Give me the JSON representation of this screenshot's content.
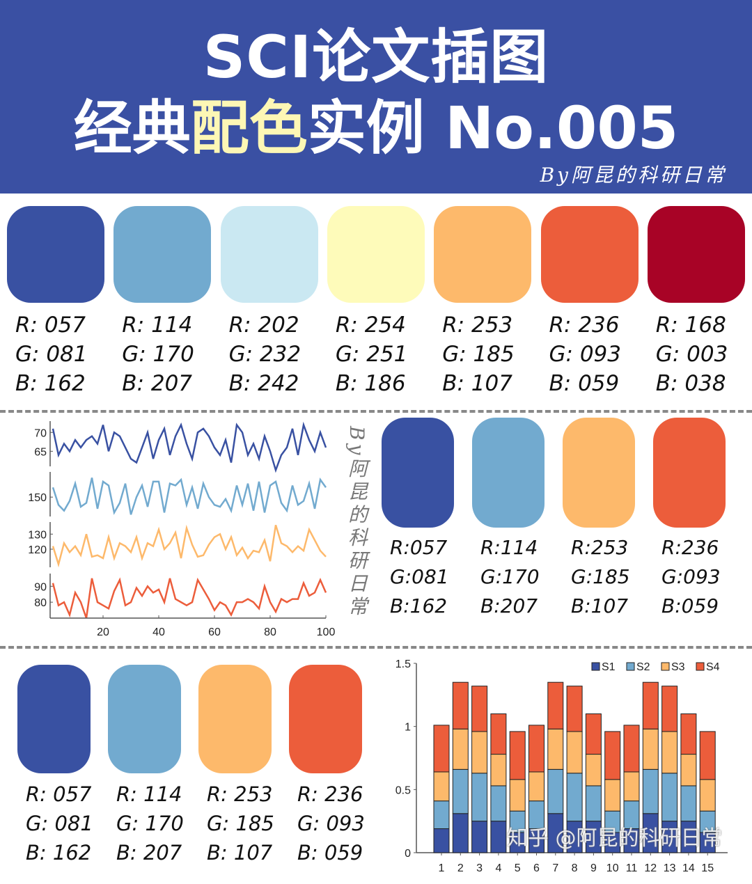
{
  "header": {
    "title_line1": "SCI论文插图",
    "title_line2_a": "经典",
    "title_line2_highlight": "配色",
    "title_line2_b": "实例 No.005",
    "byline": "By阿昆的科研日常",
    "bg_color": "#3A50A3",
    "highlight_color": "#FDF7B5"
  },
  "palette7": [
    {
      "color": "#3951A2",
      "r": "R: 057",
      "g": "G: 081",
      "b": "B: 162"
    },
    {
      "color": "#72AACF",
      "r": "R: 114",
      "g": "G: 170",
      "b": "B: 207"
    },
    {
      "color": "#CAE8F2",
      "r": "R: 202",
      "g": "G: 232",
      "b": "B: 242"
    },
    {
      "color": "#FEFBBA",
      "r": "R: 254",
      "g": "G: 251",
      "b": "B: 186"
    },
    {
      "color": "#FDB96B",
      "r": "R: 253",
      "g": "G: 185",
      "b": "B: 107"
    },
    {
      "color": "#EC5D3B",
      "r": "R: 236",
      "g": "G: 093",
      "b": "B: 059"
    },
    {
      "color": "#A80326",
      "r": "R: 168",
      "g": "G: 003",
      "b": "B: 038"
    }
  ],
  "palette4a": [
    {
      "color": "#3951A2",
      "r": "R:057",
      "g": "G:081",
      "b": "B:162"
    },
    {
      "color": "#72AACF",
      "r": "R:114",
      "g": "G:170",
      "b": "B:207"
    },
    {
      "color": "#FDB96B",
      "r": "R:253",
      "g": "G:185",
      "b": "B:107"
    },
    {
      "color": "#EC5D3B",
      "r": "R:236",
      "g": "G:093",
      "b": "B:059"
    }
  ],
  "palette4b": [
    {
      "color": "#3951A2",
      "r": "R: 057",
      "g": "G: 081",
      "b": "B: 162"
    },
    {
      "color": "#72AACF",
      "r": "R: 114",
      "g": "G: 170",
      "b": "B: 207"
    },
    {
      "color": "#FDB96B",
      "r": "R: 253",
      "g": "G: 185",
      "b": "B: 107"
    },
    {
      "color": "#EC5D3B",
      "r": "R: 236",
      "g": "G: 093",
      "b": "B: 059"
    }
  ],
  "side_watermark": "By阿昆的科研日常",
  "bottom_watermark": "知乎 @阿昆的科研日常",
  "chart_data": [
    {
      "type": "line",
      "xlim": [
        1,
        100
      ],
      "xticks": [
        "20",
        "40",
        "60",
        "80",
        "100"
      ],
      "x": [
        2,
        4,
        6,
        8,
        10,
        12,
        14,
        16,
        18,
        20,
        22,
        24,
        26,
        28,
        30,
        32,
        34,
        36,
        38,
        40,
        42,
        44,
        46,
        48,
        50,
        52,
        54,
        56,
        58,
        60,
        62,
        64,
        66,
        68,
        70,
        72,
        74,
        76,
        78,
        80,
        82,
        84,
        86,
        88,
        90,
        92,
        94,
        96,
        98,
        100
      ],
      "panels": [
        {
          "color": "#3951A2",
          "ylim": [
            61,
            73
          ],
          "yticks": [
            "65",
            "70"
          ],
          "values": [
            71,
            64,
            67,
            65,
            68,
            66,
            68,
            69,
            67,
            72,
            65,
            70,
            69,
            66,
            63,
            62,
            66,
            70,
            63,
            68,
            71,
            64,
            69,
            72,
            67,
            63,
            70,
            71,
            69,
            66,
            64,
            68,
            62,
            72,
            70,
            64,
            67,
            63,
            69,
            65,
            60,
            64,
            66,
            71,
            64,
            72,
            68,
            65,
            70,
            66
          ]
        },
        {
          "color": "#72AACF",
          "ylim": [
            140,
            163
          ],
          "yticks": [
            "150"
          ],
          "values": [
            155,
            146,
            143,
            148,
            157,
            145,
            147,
            160,
            144,
            158,
            156,
            142,
            147,
            157,
            141,
            150,
            156,
            145,
            158,
            158,
            142,
            157,
            156,
            159,
            146,
            155,
            144,
            157,
            150,
            146,
            145,
            149,
            143,
            156,
            146,
            157,
            143,
            158,
            142,
            156,
            158,
            147,
            143,
            156,
            146,
            148,
            157,
            144,
            159,
            155
          ]
        },
        {
          "color": "#FDB96B",
          "ylim": [
            108,
            138
          ],
          "yticks": [
            "120",
            "130"
          ],
          "values": [
            122,
            110,
            124,
            118,
            122,
            116,
            130,
            115,
            116,
            114,
            128,
            114,
            124,
            122,
            118,
            128,
            114,
            124,
            122,
            133,
            120,
            124,
            131,
            114,
            134,
            123,
            115,
            116,
            123,
            128,
            130,
            120,
            128,
            116,
            121,
            114,
            119,
            118,
            126,
            112,
            136,
            124,
            122,
            118,
            122,
            119,
            133,
            126,
            119,
            115
          ]
        },
        {
          "color": "#EC5D3B",
          "ylim": [
            70,
            98
          ],
          "yticks": [
            "80",
            "90"
          ],
          "values": [
            92,
            78,
            80,
            72,
            86,
            80,
            70,
            95,
            80,
            78,
            76,
            87,
            94,
            78,
            80,
            89,
            84,
            90,
            86,
            88,
            80,
            95,
            82,
            80,
            78,
            80,
            94,
            88,
            82,
            75,
            80,
            78,
            72,
            80,
            80,
            82,
            80,
            76,
            90,
            80,
            74,
            82,
            80,
            82,
            82,
            92,
            84,
            86,
            94,
            86
          ]
        }
      ]
    },
    {
      "type": "bar",
      "stacked": true,
      "ylim": [
        0,
        1.5
      ],
      "yticks": [
        "0",
        "0.5",
        "1",
        "1.5"
      ],
      "legend": "top-right",
      "categories": [
        "1",
        "2",
        "3",
        "4",
        "5",
        "6",
        "7",
        "8",
        "9",
        "10",
        "11",
        "12",
        "13",
        "14",
        "15"
      ],
      "series": [
        {
          "name": "S1",
          "color": "#3951A2",
          "values": [
            0.19,
            0.31,
            0.25,
            0.25,
            0.16,
            0.19,
            0.31,
            0.25,
            0.25,
            0.16,
            0.19,
            0.31,
            0.25,
            0.25,
            0.16
          ]
        },
        {
          "name": "S2",
          "color": "#72AACF",
          "values": [
            0.22,
            0.35,
            0.38,
            0.28,
            0.17,
            0.22,
            0.35,
            0.38,
            0.28,
            0.17,
            0.22,
            0.35,
            0.38,
            0.28,
            0.17
          ]
        },
        {
          "name": "S3",
          "color": "#FDB96B",
          "values": [
            0.23,
            0.32,
            0.33,
            0.25,
            0.25,
            0.23,
            0.32,
            0.33,
            0.25,
            0.25,
            0.23,
            0.32,
            0.33,
            0.25,
            0.25
          ]
        },
        {
          "name": "S4",
          "color": "#EC5D3B",
          "values": [
            0.37,
            0.37,
            0.36,
            0.32,
            0.38,
            0.37,
            0.37,
            0.36,
            0.32,
            0.38,
            0.37,
            0.37,
            0.36,
            0.32,
            0.38
          ]
        }
      ]
    }
  ]
}
